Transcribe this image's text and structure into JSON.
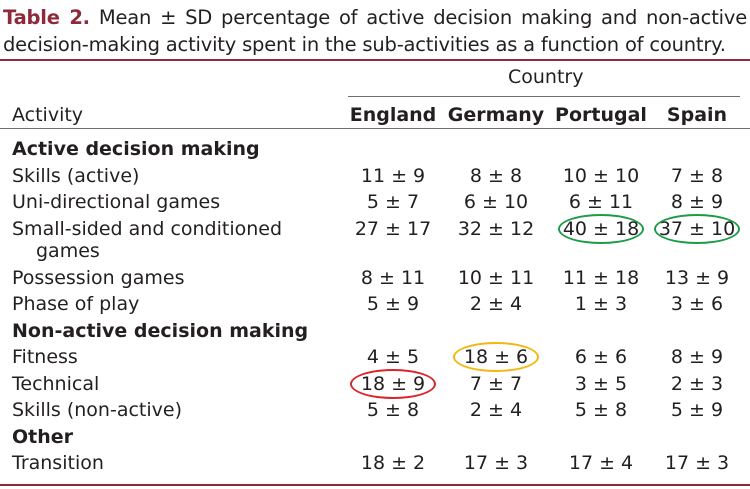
{
  "caption": {
    "label": "Table 2.",
    "text": "Mean ± SD percentage of active decision making and non-active decision-making activity spent in the sub-activities as a function of country."
  },
  "table": {
    "group_header": "Country",
    "activity_header": "Activity",
    "columns": [
      "England",
      "Germany",
      "Portugal",
      "Spain"
    ],
    "sections": [
      {
        "title": "Active decision making",
        "rows": [
          {
            "label": "Skills (active)",
            "values": [
              "11 ± 9",
              "8 ± 8",
              "10 ± 10",
              "7 ± 8"
            ]
          },
          {
            "label": "Uni-directional games",
            "values": [
              "5 ± 7",
              "6 ± 10",
              "6 ± 11",
              "8 ± 9"
            ]
          },
          {
            "label": "Small-sided and conditioned",
            "label2": "games",
            "values": [
              "27 ± 17",
              "32 ± 12",
              "40 ± 18",
              "37 ± 10"
            ]
          },
          {
            "label": "Possession games",
            "values": [
              "8 ± 11",
              "10 ± 11",
              "11 ± 18",
              "13 ± 9"
            ]
          },
          {
            "label": "Phase of play",
            "values": [
              "5 ± 9",
              "2 ± 4",
              "1 ± 3",
              "3 ± 6"
            ]
          }
        ]
      },
      {
        "title": "Non-active decision making",
        "rows": [
          {
            "label": "Fitness",
            "values": [
              "4 ± 5",
              "18 ± 6",
              "6 ± 6",
              "8 ± 9"
            ]
          },
          {
            "label": "Technical",
            "values": [
              "18 ± 9",
              "7 ± 7",
              "3 ± 5",
              "2 ± 3"
            ]
          },
          {
            "label": "Skills (non-active)",
            "values": [
              "5 ± 8",
              "2 ± 4",
              "5 ± 8",
              "5 ± 9"
            ]
          }
        ]
      },
      {
        "title": "Other",
        "rows": [
          {
            "label": "Transition",
            "values": [
              "18 ± 2",
              "17 ± 3",
              "17 ± 4",
              "17 ± 3"
            ]
          }
        ]
      }
    ]
  },
  "highlights": [
    {
      "section": 0,
      "row": 2,
      "col": 2,
      "color": "#1e9b45"
    },
    {
      "section": 0,
      "row": 2,
      "col": 3,
      "color": "#1e9b45"
    },
    {
      "section": 1,
      "row": 0,
      "col": 1,
      "color": "#f5b60f"
    },
    {
      "section": 1,
      "row": 1,
      "col": 0,
      "color": "#d8242b"
    }
  ]
}
